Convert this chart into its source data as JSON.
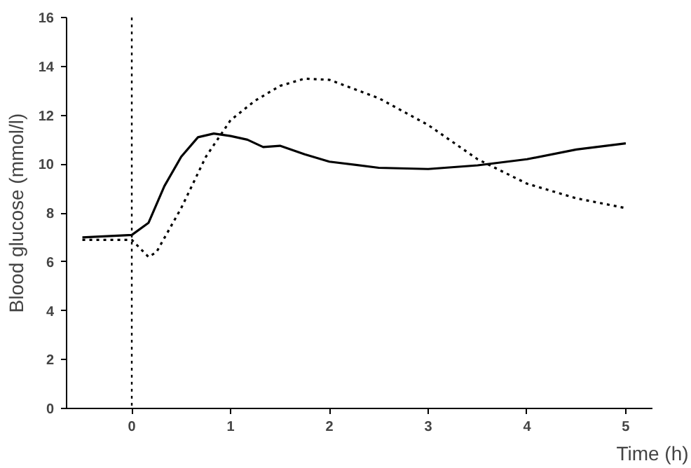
{
  "chart_data": {
    "type": "line",
    "xlabel": "Time (h)",
    "ylabel": "Blood glucose (mmol/l)",
    "xlim": [
      -0.66,
      5.27
    ],
    "ylim": [
      0,
      16
    ],
    "xticks": [
      0,
      1,
      2,
      3,
      4,
      5
    ],
    "yticks": [
      0,
      2,
      4,
      6,
      8,
      10,
      12,
      14,
      16
    ],
    "grid": false,
    "marker": "none",
    "series": [
      {
        "color": "#000000",
        "line_style": "solid",
        "x": [
          -0.5,
          0,
          0.17,
          0.33,
          0.5,
          0.67,
          0.83,
          1,
          1.17,
          1.33,
          1.5,
          1.75,
          2,
          2.5,
          3,
          3.5,
          4,
          4.5,
          5
        ],
        "values": [
          7.0,
          7.1,
          7.6,
          9.1,
          10.3,
          11.1,
          11.25,
          11.15,
          11.0,
          10.7,
          10.75,
          10.4,
          10.1,
          9.85,
          9.8,
          9.95,
          10.2,
          10.6,
          10.85
        ]
      },
      {
        "color": "#000000",
        "line_style": "dotted",
        "x": [
          -0.5,
          0,
          0.17,
          0.25,
          0.5,
          0.75,
          1,
          1.25,
          1.5,
          1.75,
          2,
          2.5,
          3,
          3.5,
          4,
          4.5,
          5
        ],
        "values": [
          6.9,
          6.9,
          6.2,
          6.4,
          8.2,
          10.3,
          11.8,
          12.6,
          13.2,
          13.5,
          13.45,
          12.7,
          11.6,
          10.2,
          9.2,
          8.6,
          8.2
        ]
      }
    ],
    "ref_lines": [
      {
        "axis": "x",
        "value": 0,
        "color": "#000000",
        "line_style": "dotted"
      }
    ]
  }
}
